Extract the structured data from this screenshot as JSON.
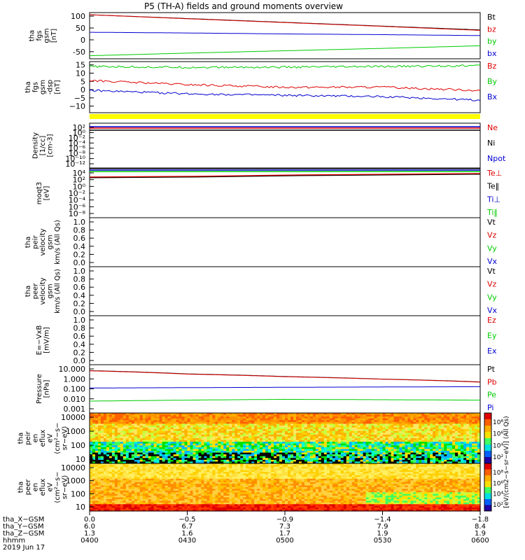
{
  "title": "P5 (TH-A) fields and ground moments overview",
  "colors": {
    "black": "#000000",
    "red": "#e00000",
    "green": "#00cc00",
    "blue": "#0000d0",
    "yellow": "#ffff00"
  },
  "chart_data": [
    {
      "type": "line",
      "ylabel": "tha\nfgs\ngsm\n[nT]",
      "ylim": [
        -80,
        115
      ],
      "yticks": [
        "100",
        "50",
        "0",
        "-50"
      ],
      "yticks_v": [
        100,
        50,
        0,
        -50
      ],
      "x": [
        0,
        0.25,
        0.5,
        0.75,
        1
      ],
      "series": [
        {
          "name": "Bt",
          "color": "#000000",
          "values": [
            106,
            90,
            74,
            58,
            42
          ]
        },
        {
          "name": "bz",
          "color": "#e00000",
          "values": [
            106,
            89,
            73,
            57,
            40
          ]
        },
        {
          "name": "by",
          "color": "#00cc00",
          "values": [
            -67,
            -56,
            -46,
            -36,
            -25
          ]
        },
        {
          "name": "bx",
          "color": "#0000d0",
          "values": [
            32,
            29,
            25,
            22,
            18
          ]
        }
      ]
    },
    {
      "type": "line",
      "ylabel": "tha\nfgs\ngsm\n-dsp\n[nT]",
      "ylim": [
        -14,
        17
      ],
      "yticks": [
        "15",
        "10",
        "5",
        "0",
        "−5",
        "−10"
      ],
      "yticks_v": [
        15,
        10,
        5,
        0,
        -5,
        -10
      ],
      "x": [
        0,
        0.25,
        0.5,
        0.75,
        1
      ],
      "series": [
        {
          "name": "Bz",
          "color": "#e00000",
          "values": [
            5.5,
            3,
            1.5,
            1.5,
            -0.5
          ]
        },
        {
          "name": "By",
          "color": "#00cc00",
          "values": [
            14,
            13.5,
            13.6,
            14,
            14.6
          ]
        },
        {
          "name": "Bx",
          "color": "#0000d0",
          "values": [
            -0.5,
            -2.5,
            -3.5,
            -4.2,
            -6.5
          ]
        }
      ]
    },
    {
      "type": "line",
      "ylabel": "Density\n[1/cc]\n[cm-3]",
      "yscale": "log",
      "yticks": [
        "10²",
        "10⁰",
        "10⁻²",
        "10⁻⁴",
        "10⁻⁶",
        "10⁻⁸",
        "10⁻¹⁰",
        "10⁻¹²"
      ],
      "series": [
        {
          "name": "Ne",
          "color": "#e00000"
        },
        {
          "name": "Ni",
          "color": "#000000"
        },
        {
          "name": "Npot",
          "color": "#0000d0"
        }
      ]
    },
    {
      "type": "line",
      "ylabel": "moqt3\n[eV]",
      "yscale": "log",
      "yticks": [
        "10⁴",
        "10²",
        "10⁰",
        "10⁻²",
        "10⁻⁴",
        "10⁻⁶",
        "10⁻⁸"
      ],
      "series": [
        {
          "name": "Te⊥",
          "color": "#e00000"
        },
        {
          "name": "Te‖",
          "color": "#000000"
        },
        {
          "name": "Ti⊥",
          "color": "#0000d0"
        },
        {
          "name": "Ti‖",
          "color": "#00cc00"
        }
      ]
    },
    {
      "type": "line",
      "ylabel": "tha\npeir\nvelocity\ngsm\nkm/s (All Qs)",
      "ylim": [
        0,
        1
      ],
      "yticks": [
        "1.0",
        "0.8",
        "0.6",
        "0.4",
        "0.2",
        "0.0"
      ],
      "series": [
        {
          "name": "Vt",
          "color": "#000000"
        },
        {
          "name": "Vz",
          "color": "#e00000"
        },
        {
          "name": "Vy",
          "color": "#00cc00"
        },
        {
          "name": "Vx",
          "color": "#0000d0"
        }
      ]
    },
    {
      "type": "line",
      "ylabel": "tha\npeer\nvelocity\ngsm\nkm/s (All Qs)",
      "ylim": [
        0,
        1
      ],
      "yticks": [
        "1.0",
        "0.8",
        "0.6",
        "0.4",
        "0.2",
        "0.0"
      ],
      "series": [
        {
          "name": "Vt",
          "color": "#000000"
        },
        {
          "name": "Vz",
          "color": "#e00000"
        },
        {
          "name": "Vy",
          "color": "#00cc00"
        },
        {
          "name": "Vx",
          "color": "#0000d0"
        }
      ]
    },
    {
      "type": "line",
      "ylabel": "E=−VxB\n[mV/m]",
      "ylim": [
        0,
        1
      ],
      "yticks": [
        "1.0",
        "0.8",
        "0.6",
        "0.4",
        "0.2",
        "0.0"
      ],
      "series": [
        {
          "name": "Ez",
          "color": "#e00000"
        },
        {
          "name": "Ey",
          "color": "#00cc00"
        },
        {
          "name": "Ex",
          "color": "#0000d0"
        }
      ]
    },
    {
      "type": "line",
      "ylabel": "Pressure\n[nPa]",
      "yscale": "log",
      "ylim": [
        0.0008,
        15
      ],
      "yticks": [
        "10.000",
        "1.000",
        "0.100",
        "0.010",
        "0.001"
      ],
      "x": [
        0,
        0.25,
        0.5,
        0.75,
        1
      ],
      "series": [
        {
          "name": "Pt",
          "color": "#000000",
          "values": [
            4.5,
            2.3,
            1.35,
            0.8,
            0.45
          ]
        },
        {
          "name": "Pb",
          "color": "#e00000",
          "values": [
            4.3,
            2.2,
            1.3,
            0.78,
            0.43
          ]
        },
        {
          "name": "Pe",
          "color": "#00cc00",
          "values": [
            0.009,
            0.011,
            0.013,
            0.012,
            0.011
          ]
        },
        {
          "name": "Pi",
          "color": "#0000d0",
          "values": [
            0.13,
            0.14,
            0.15,
            0.16,
            0.17
          ]
        }
      ]
    },
    {
      "type": "heatmap",
      "ylabel": "tha\npeir\nen\neflux\neV\n(cm²−s−\nsr−eV)",
      "yscale": "log",
      "yticks": [
        "10000",
        "1000",
        "100",
        "10"
      ],
      "colorbar_ticks": [
        "10⁸",
        "10⁶",
        "10⁴",
        "10²"
      ],
      "colorbar_label": "[eV/(cm2−s−sr−eV)] (All Qs)"
    },
    {
      "type": "heatmap",
      "ylabel": "tha\npeer\nen\neflux\neV\n(cm²−s−\nsr−eV)",
      "yscale": "log",
      "yticks": [
        "10000",
        "1000",
        "100",
        "10"
      ],
      "colorbar_ticks": [
        "10⁸",
        "10⁶",
        "10⁴",
        "10²"
      ],
      "colorbar_label": "[eV/(cm2−s−sr−eV)] (All Qs)"
    }
  ],
  "xaxis": {
    "row_labels": [
      "tha_X−GSM",
      "tha_Y−GSM",
      "tha_Z−GSM",
      "hhmm",
      "2019 Jun 17"
    ],
    "columns": [
      [
        "0.0",
        "6.0",
        "1.3",
        "0400"
      ],
      [
        "−0.5",
        "6.7",
        "1.6",
        "0430"
      ],
      [
        "−0.9",
        "7.3",
        "1.7",
        "0500"
      ],
      [
        "−1.4",
        "7.9",
        "1.9",
        "0530"
      ],
      [
        "−1.8",
        "8.4",
        "1.9",
        "0600"
      ]
    ]
  }
}
